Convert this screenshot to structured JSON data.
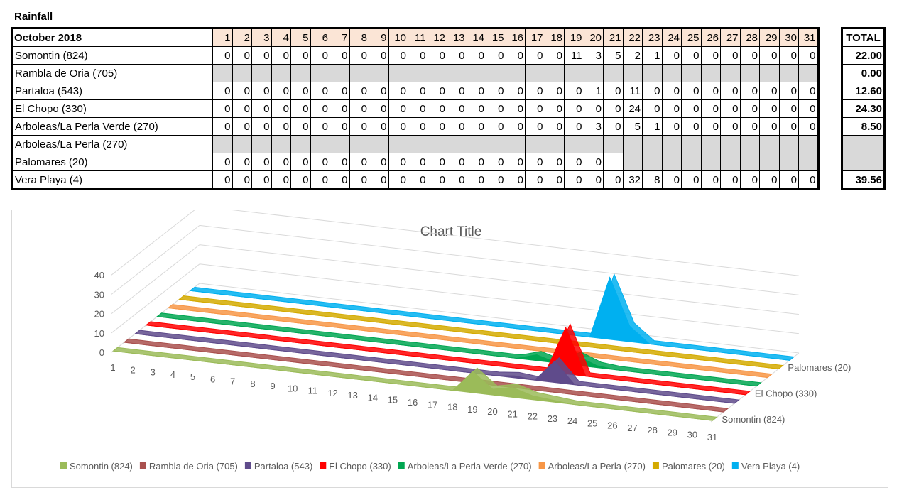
{
  "title": "Rainfall",
  "table": {
    "header_label": "October  2018",
    "days": [
      "1",
      "2",
      "3",
      "4",
      "5",
      "6",
      "7",
      "8",
      "9",
      "10",
      "11",
      "12",
      "13",
      "14",
      "15",
      "16",
      "17",
      "18",
      "19",
      "20",
      "21",
      "22",
      "23",
      "24",
      "25",
      "26",
      "27",
      "28",
      "29",
      "30",
      "31"
    ],
    "total_label": "TOTAL",
    "rows": [
      {
        "name": "Somontin (824)",
        "values": [
          "0",
          "0",
          "0",
          "0",
          "0",
          "0",
          "0",
          "0",
          "0",
          "0",
          "0",
          "0",
          "0",
          "0",
          "0",
          "0",
          "0",
          "0",
          "11",
          "3",
          "5",
          "2",
          "1",
          "0",
          "0",
          "0",
          "0",
          "0",
          "0",
          "0",
          "0"
        ],
        "total": "22.00"
      },
      {
        "name": "Rambla de Oria (705)",
        "values": [
          "",
          "",
          "",
          "",
          "",
          "",
          "",
          "",
          "",
          "",
          "",
          "",
          "",
          "",
          "",
          "",
          "",
          "",
          "",
          "",
          "",
          "",
          "",
          "",
          "",
          "",
          "",
          "",
          "",
          "",
          ""
        ],
        "total": "0.00"
      },
      {
        "name": "Partaloa (543)",
        "values": [
          "0",
          "0",
          "0",
          "0",
          "0",
          "0",
          "0",
          "0",
          "0",
          "0",
          "0",
          "0",
          "0",
          "0",
          "0",
          "0",
          "0",
          "0",
          "0",
          "1",
          "0",
          "11",
          "0",
          "0",
          "0",
          "0",
          "0",
          "0",
          "0",
          "0",
          "0"
        ],
        "total": "12.60"
      },
      {
        "name": "El Chopo (330)",
        "values": [
          "0",
          "0",
          "0",
          "0",
          "0",
          "0",
          "0",
          "0",
          "0",
          "0",
          "0",
          "0",
          "0",
          "0",
          "0",
          "0",
          "0",
          "0",
          "0",
          "0",
          "0",
          "24",
          "0",
          "0",
          "0",
          "0",
          "0",
          "0",
          "0",
          "0",
          "0"
        ],
        "total": "24.30"
      },
      {
        "name": "Arboleas/La Perla Verde (270)",
        "values": [
          "0",
          "0",
          "0",
          "0",
          "0",
          "0",
          "0",
          "0",
          "0",
          "0",
          "0",
          "0",
          "0",
          "0",
          "0",
          "0",
          "0",
          "0",
          "0",
          "3",
          "0",
          "5",
          "1",
          "0",
          "0",
          "0",
          "0",
          "0",
          "0",
          "0",
          "0"
        ],
        "total": "8.50"
      },
      {
        "name": "Arboleas/La Perla (270)",
        "values": [
          "",
          "",
          "",
          "",
          "",
          "",
          "",
          "",
          "",
          "",
          "",
          "",
          "",
          "",
          "",
          "",
          "",
          "",
          "",
          "",
          "",
          "",
          "",
          "",
          "",
          "",
          "",
          "",
          "",
          "",
          ""
        ],
        "total": ""
      },
      {
        "name": "Palomares (20)",
        "values": [
          "0",
          "0",
          "0",
          "0",
          "0",
          "0",
          "0",
          "0",
          "0",
          "0",
          "0",
          "0",
          "0",
          "0",
          "0",
          "0",
          "0",
          "0",
          "0",
          "0",
          "",
          "",
          "",
          "",
          "",
          "",
          "",
          "",
          "",
          "",
          ""
        ],
        "total": ""
      },
      {
        "name": "Vera Playa (4)",
        "values": [
          "0",
          "0",
          "0",
          "0",
          "0",
          "0",
          "0",
          "0",
          "0",
          "0",
          "0",
          "0",
          "0",
          "0",
          "0",
          "0",
          "0",
          "0",
          "0",
          "0",
          "0",
          "32",
          "8",
          "0",
          "0",
          "0",
          "0",
          "0",
          "0",
          "0",
          "0"
        ],
        "total": "39.56"
      }
    ]
  },
  "chart_data": {
    "type": "area",
    "title": "Chart Title",
    "categories": [
      "1",
      "2",
      "3",
      "4",
      "5",
      "6",
      "7",
      "8",
      "9",
      "10",
      "11",
      "12",
      "13",
      "14",
      "15",
      "16",
      "17",
      "18",
      "19",
      "20",
      "21",
      "22",
      "23",
      "24",
      "25",
      "26",
      "27",
      "28",
      "29",
      "30",
      "31"
    ],
    "x_tick_labels": [
      "1",
      "2",
      "3",
      "4",
      "5",
      "6",
      "7",
      "8",
      "9",
      "10",
      "11",
      "12",
      "13",
      "14",
      "15",
      "16",
      "17",
      "18",
      "19",
      "20",
      "21",
      "22",
      "23",
      "24",
      "25",
      "26",
      "27",
      "28",
      "29",
      "30",
      "31"
    ],
    "ylim": [
      0,
      40
    ],
    "yticks": [
      "0",
      "10",
      "20",
      "30",
      "40"
    ],
    "depth_labels": [
      "Palomares (20)",
      "El Chopo (330)",
      "Somontin (824)"
    ],
    "legend_position": "bottom",
    "series": [
      {
        "name": "Somontin (824)",
        "color": "#9bbb59",
        "values": [
          0,
          0,
          0,
          0,
          0,
          0,
          0,
          0,
          0,
          0,
          0,
          0,
          0,
          0,
          0,
          0,
          0,
          0,
          11,
          3,
          5,
          2,
          1,
          0,
          0,
          0,
          0,
          0,
          0,
          0,
          0
        ]
      },
      {
        "name": "Rambla de Oria (705)",
        "color": "#a9504e",
        "values": [
          0,
          0,
          0,
          0,
          0,
          0,
          0,
          0,
          0,
          0,
          0,
          0,
          0,
          0,
          0,
          0,
          0,
          0,
          0,
          0,
          0,
          0,
          0,
          0,
          0,
          0,
          0,
          0,
          0,
          0,
          0
        ]
      },
      {
        "name": "Partaloa (543)",
        "color": "#5f4b8b",
        "values": [
          0,
          0,
          0,
          0,
          0,
          0,
          0,
          0,
          0,
          0,
          0,
          0,
          0,
          0,
          0,
          0,
          0,
          0,
          0,
          1,
          0,
          11,
          0,
          0,
          0,
          0,
          0,
          0,
          0,
          0,
          0
        ]
      },
      {
        "name": "El Chopo (330)",
        "color": "#ff0000",
        "values": [
          0,
          0,
          0,
          0,
          0,
          0,
          0,
          0,
          0,
          0,
          0,
          0,
          0,
          0,
          0,
          0,
          0,
          0,
          0,
          0,
          0,
          24,
          0,
          0,
          0,
          0,
          0,
          0,
          0,
          0,
          0
        ]
      },
      {
        "name": "Arboleas/La Perla Verde (270)",
        "color": "#00a651",
        "values": [
          0,
          0,
          0,
          0,
          0,
          0,
          0,
          0,
          0,
          0,
          0,
          0,
          0,
          0,
          0,
          0,
          0,
          0,
          0,
          3,
          0,
          5,
          1,
          0,
          0,
          0,
          0,
          0,
          0,
          0,
          0
        ]
      },
      {
        "name": "Arboleas/La Perla (270)",
        "color": "#f79646",
        "values": [
          0,
          0,
          0,
          0,
          0,
          0,
          0,
          0,
          0,
          0,
          0,
          0,
          0,
          0,
          0,
          0,
          0,
          0,
          0,
          0,
          0,
          0,
          0,
          0,
          0,
          0,
          0,
          0,
          0,
          0,
          0
        ]
      },
      {
        "name": "Palomares (20)",
        "color": "#d4aa00",
        "values": [
          0,
          0,
          0,
          0,
          0,
          0,
          0,
          0,
          0,
          0,
          0,
          0,
          0,
          0,
          0,
          0,
          0,
          0,
          0,
          0,
          0,
          0,
          0,
          0,
          0,
          0,
          0,
          0,
          0,
          0,
          0
        ]
      },
      {
        "name": "Vera Playa (4)",
        "color": "#00b0f0",
        "values": [
          0,
          0,
          0,
          0,
          0,
          0,
          0,
          0,
          0,
          0,
          0,
          0,
          0,
          0,
          0,
          0,
          0,
          0,
          0,
          0,
          0,
          32,
          8,
          0,
          0,
          0,
          0,
          0,
          0,
          0,
          0
        ]
      }
    ]
  }
}
